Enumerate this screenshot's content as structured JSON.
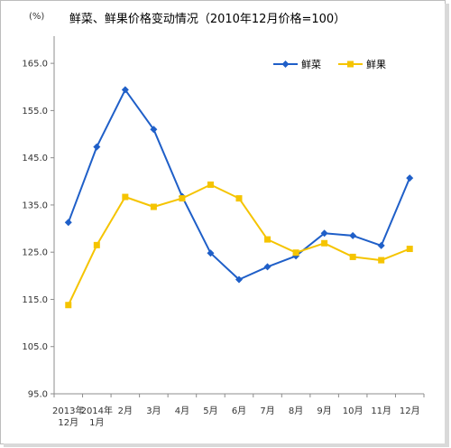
{
  "chart_data": {
    "type": "line",
    "title": "鲜菜、鲜果价格变动情况（2010年12月价格=100）",
    "unit": "(%)",
    "categories": [
      [
        "2013年",
        "12月"
      ],
      [
        "2014年",
        "1月"
      ],
      [
        "2月"
      ],
      [
        "3月"
      ],
      [
        "4月"
      ],
      [
        "5月"
      ],
      [
        "6月"
      ],
      [
        "7月"
      ],
      [
        "8月"
      ],
      [
        "9月"
      ],
      [
        "10月"
      ],
      [
        "11月"
      ],
      [
        "12月"
      ]
    ],
    "y_ticks": [
      "95.0",
      "105.0",
      "115.0",
      "125.0",
      "135.0",
      "145.0",
      "155.0",
      "165.0"
    ],
    "ylim": [
      95,
      170
    ],
    "series": [
      {
        "name": "鲜菜",
        "color": "#1f5fc8",
        "marker": "diamond",
        "values": [
          131.3,
          147.3,
          159.4,
          151.0,
          136.8,
          124.8,
          119.2,
          121.9,
          124.2,
          129.0,
          128.5,
          126.4,
          140.7
        ]
      },
      {
        "name": "鲜果",
        "color": "#f5c400",
        "marker": "square",
        "values": [
          113.8,
          126.5,
          136.7,
          134.6,
          136.4,
          139.3,
          136.4,
          127.7,
          124.9,
          126.9,
          124.0,
          123.3,
          125.7
        ]
      }
    ],
    "legend_position": "top-right",
    "grid": false
  }
}
